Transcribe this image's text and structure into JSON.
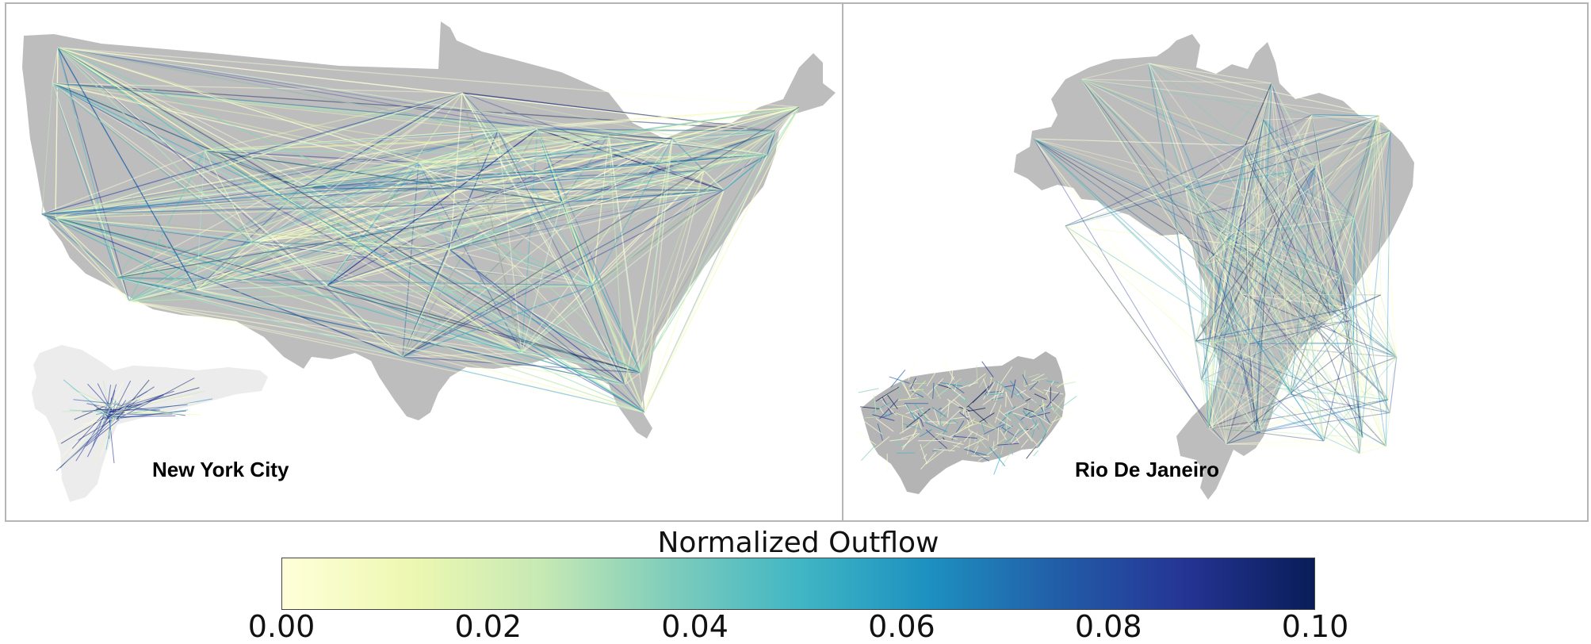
{
  "panels": [
    {
      "id": "usa",
      "label": "New York City",
      "base_map_color": "#bdbdbd",
      "inset_color": "#ececec"
    },
    {
      "id": "brazil",
      "label": "Rio De Janeiro",
      "base_map_color": "#bdbdbd",
      "inset_color": "#b4b4b4"
    }
  ],
  "colorbar": {
    "title": "Normalized Outflow",
    "min": 0.0,
    "max": 0.1,
    "ticks": [
      "0.00",
      "0.02",
      "0.04",
      "0.06",
      "0.08",
      "0.10"
    ],
    "colors": [
      "#ffffd9",
      "#edf8b1",
      "#c7e9b4",
      "#7fcdbb",
      "#41b6c4",
      "#1d91c0",
      "#225ea8",
      "#253494",
      "#081d58"
    ]
  },
  "line_colors": [
    "#ffffd9",
    "#edf8b1",
    "#c7e9b4",
    "#7fcdbb",
    "#41b6c4",
    "#1d91c0",
    "#225ea8",
    "#253494",
    "#081d58"
  ]
}
